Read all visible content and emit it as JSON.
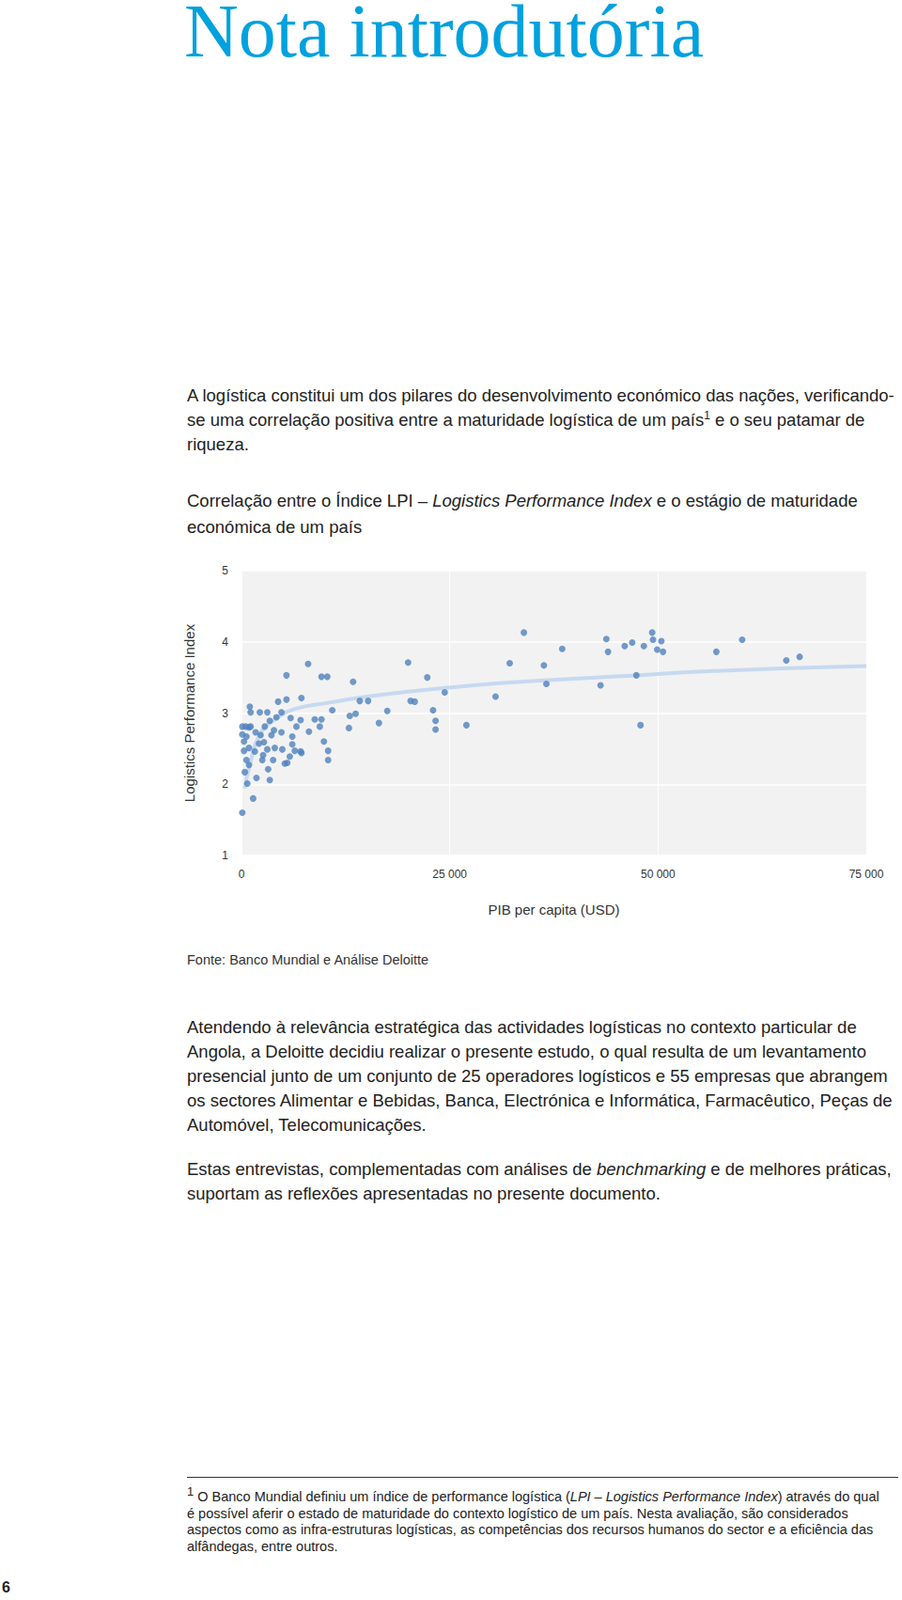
{
  "document": {
    "title": "Nota introdutória",
    "paragraph_1": [
      {
        "text": "A logística constitui um dos pilares do desenvolvimento económico das nações, verificando-se uma correlação positiva entre a maturidade logística de um país"
      },
      {
        "text": "1",
        "sup": true
      },
      {
        "text": " e o seu patamar de riqueza."
      }
    ],
    "source": "Fonte: Banco Mundial e Análise Deloitte",
    "paragraph_2": [
      {
        "text": "Atendendo à relevância estratégica das actividades logísticas no contexto particular de Angola, a Deloitte decidiu realizar o presente estudo, o qual resulta de um levantamento presencial junto de um conjunto de 25 operadores logísticos e 55 empresas que abrangem os sectores Alimentar e Bebidas, Banca, Electrónica e Informática, Farmacêutico, Peças de Automóvel, Telecomunicações."
      }
    ],
    "paragraph_3": [
      {
        "text": "Estas entrevistas, complementadas com análises de "
      },
      {
        "text": "benchmarking",
        "italic": true
      },
      {
        "text": " e de melhores práticas, suportam as reflexões apresentadas no presente documento."
      }
    ],
    "footnote": [
      {
        "text": "1",
        "sup": true
      },
      {
        "text": " O Banco Mundial definiu um índice de performance logística ("
      },
      {
        "text": "LPI – Logistics Performance Index",
        "italic": true
      },
      {
        "text": ") através do qual é possível aferir o estado de maturidade do contexto logístico de um país. Nesta avaliação, são considerados aspectos como as infra-estruturas logísticas, as competências dos recursos humanos do sector e a eficiência das alfândegas, entre outros."
      }
    ],
    "page_number": "6"
  },
  "chart_data": {
    "type": "scatter",
    "title": [
      {
        "text": "Correlação entre o Índice LPI – "
      },
      {
        "text": "Logistics Performance Index",
        "italic": true
      },
      {
        "text": " e o estágio de maturidade económica de um país"
      }
    ],
    "x_label": "PIB per capita (USD)",
    "y_label": "Logistics Performance Index",
    "xlim": [
      0,
      75000
    ],
    "xticks": [
      0,
      {
        "value": 25000,
        "label": "25 000"
      },
      {
        "value": 50000,
        "label": "50 000"
      },
      {
        "value": 75000,
        "label": "75 000"
      }
    ],
    "ylim": [
      1,
      5
    ],
    "yticks": [
      1,
      2,
      3,
      4,
      5
    ],
    "grid": true,
    "series": [
      {
        "type": "scatter",
        "color": "#4f81bd",
        "marker": "circle",
        "x": [
          33900,
          43800,
          44000,
          46000,
          46900,
          48300,
          49300,
          49400,
          50400,
          49900,
          50600,
          60100,
          57000,
          65400,
          67000,
          38500,
          36300,
          36600,
          32200,
          30500,
          43100,
          47400,
          47900,
          24400,
          27000,
          22300,
          23000,
          23300,
          23300,
          20000,
          20300,
          20800,
          17500,
          16500,
          14200,
          13400,
          13700,
          13000,
          12900,
          9600,
          10300,
          8000,
          5400,
          7200,
          7100,
          8800,
          9400,
          9600,
          9900,
          10400,
          10400,
          10900,
          8100,
          7200,
          5400,
          4400,
          4200,
          3900,
          3100,
          2200,
          1000,
          1100,
          500,
          100,
          100,
          300,
          900,
          300,
          600,
          900,
          400,
          700,
          1400,
          100,
          1800,
          2600,
          2700,
          3100,
          3400,
          3600,
          3800,
          4800,
          4900,
          5200,
          5500,
          5800,
          6100,
          6100,
          6400,
          6600,
          7100,
          5900,
          4800,
          1100,
          1700,
          2300,
          2100,
          2800,
          3400,
          2500,
          3200,
          4000,
          900,
          600,
          1600,
          15200
        ],
        "values": [
          4.13,
          4.04,
          3.86,
          3.94,
          3.99,
          3.94,
          4.13,
          4.03,
          4.01,
          3.89,
          3.86,
          4.03,
          3.86,
          3.74,
          3.79,
          3.9,
          3.67,
          3.41,
          3.7,
          3.23,
          3.39,
          3.53,
          2.83,
          3.29,
          2.83,
          3.5,
          3.04,
          2.89,
          2.77,
          3.71,
          3.17,
          3.16,
          3.03,
          2.86,
          3.17,
          3.44,
          2.99,
          2.96,
          2.79,
          3.51,
          3.51,
          3.69,
          3.53,
          3.21,
          2.9,
          2.91,
          2.81,
          2.91,
          2.6,
          2.47,
          2.34,
          3.04,
          2.74,
          2.44,
          3.19,
          3.16,
          2.94,
          2.76,
          3.01,
          3.01,
          3.09,
          3.01,
          2.81,
          2.81,
          2.7,
          2.6,
          2.51,
          2.47,
          2.34,
          2.27,
          2.17,
          2.01,
          1.8,
          1.6,
          2.09,
          2.41,
          2.59,
          2.49,
          2.06,
          2.69,
          2.34,
          2.73,
          2.49,
          2.29,
          2.3,
          2.39,
          2.56,
          2.67,
          2.47,
          2.81,
          2.46,
          2.93,
          3.01,
          2.81,
          2.73,
          2.69,
          2.57,
          2.81,
          2.89,
          2.34,
          2.21,
          2.51,
          2.8,
          2.67,
          2.46,
          3.17
        ]
      },
      {
        "type": "line",
        "color": "#c6d9f0",
        "x": [
          400,
          1000,
          2200,
          4000,
          6500,
          10200,
          15100,
          20000,
          26100,
          32200,
          44500,
          56700,
          75000
        ],
        "values": [
          1.94,
          2.27,
          2.7,
          2.91,
          3.06,
          3.14,
          3.23,
          3.3,
          3.37,
          3.43,
          3.51,
          3.59,
          3.66
        ]
      }
    ]
  }
}
